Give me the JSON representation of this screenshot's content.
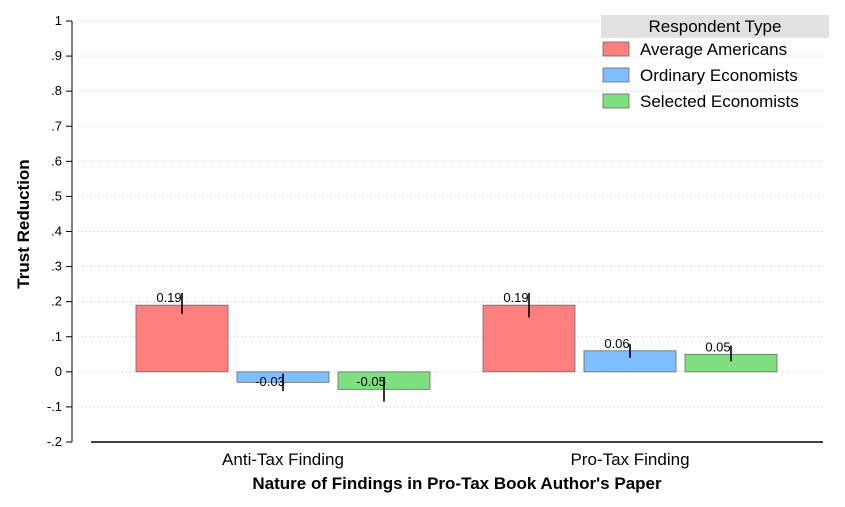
{
  "chart_data": {
    "type": "bar",
    "title": "",
    "xlabel": "Nature of Findings in Pro-Tax Book Author's Paper",
    "ylabel": "Trust Reduction",
    "ylim": [
      -0.2,
      1
    ],
    "yticks": [
      -0.2,
      -0.1,
      0,
      0.1,
      0.2,
      0.3,
      0.4,
      0.5,
      0.6,
      0.7,
      0.8,
      0.9,
      1
    ],
    "ytick_labels": [
      "-.2",
      "-.1",
      "0",
      ".1",
      ".2",
      ".3",
      ".4",
      ".5",
      ".6",
      ".7",
      ".8",
      ".9",
      "1"
    ],
    "grid": true,
    "categories": [
      "Anti-Tax Finding",
      "Pro-Tax Finding"
    ],
    "legend": {
      "title": "Respondent Type",
      "placement": "top-right"
    },
    "series": [
      {
        "name": "Average Americans",
        "color": "#ff7f7f",
        "values": [
          0.19,
          0.19
        ],
        "labels": [
          "0.19",
          "0.19"
        ],
        "ci": [
          [
            0.165,
            0.225
          ],
          [
            0.155,
            0.225
          ]
        ]
      },
      {
        "name": "Ordinary Economists",
        "color": "#7fbfff",
        "values": [
          -0.03,
          0.06
        ],
        "labels": [
          "-0.03",
          "0.06"
        ],
        "ci": [
          [
            -0.055,
            -0.005
          ],
          [
            0.04,
            0.08
          ]
        ]
      },
      {
        "name": "Selected Economists",
        "color": "#7fdf7f",
        "values": [
          -0.05,
          0.05
        ],
        "labels": [
          "-0.05",
          "0.05"
        ],
        "ci": [
          [
            -0.085,
            -0.015
          ],
          [
            0.03,
            0.075
          ]
        ]
      }
    ]
  }
}
